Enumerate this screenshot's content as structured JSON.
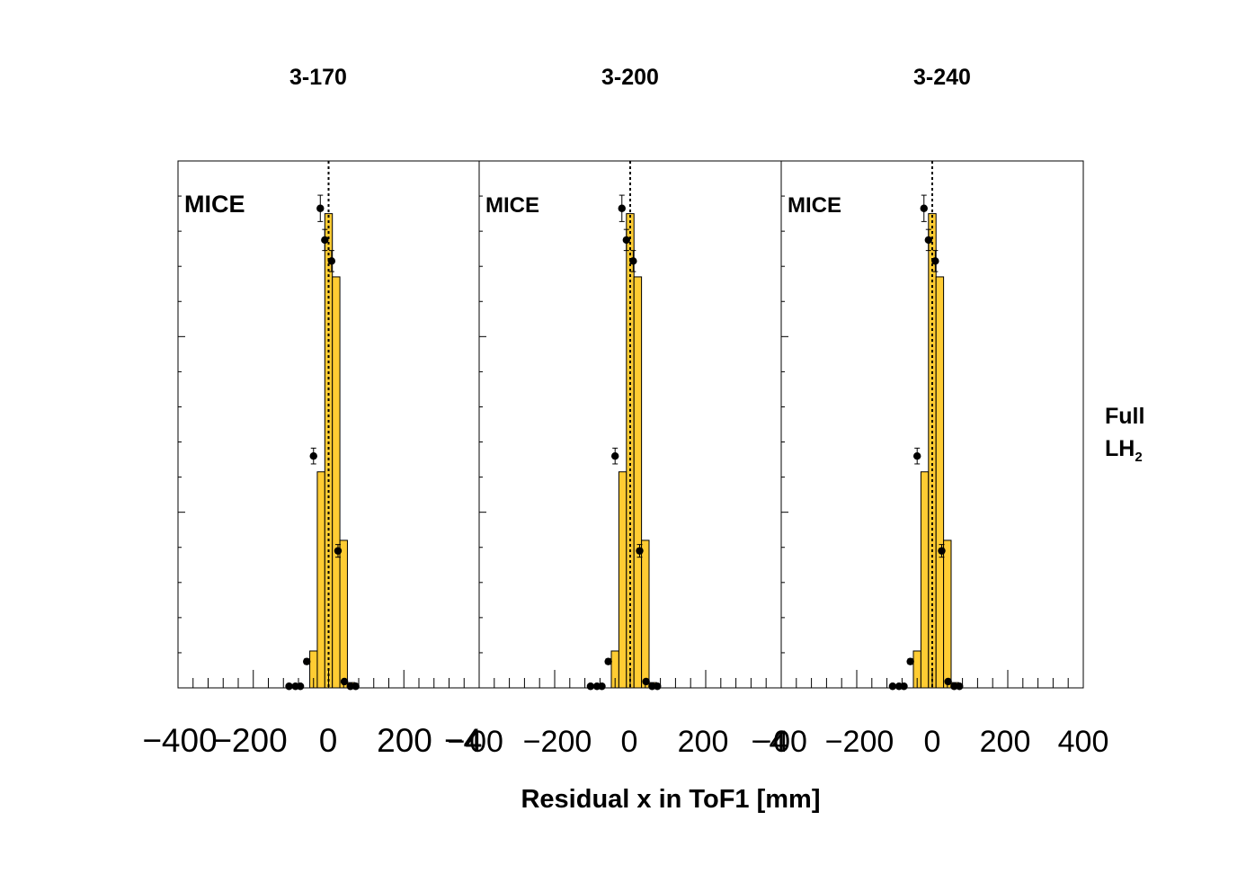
{
  "chart_data": {
    "type": "bar",
    "xlabel": "Residual x in ToF1 [mm]",
    "xlim": [
      -400,
      400
    ],
    "ylim": [
      0,
      1
    ],
    "row_label": [
      "Full",
      "LH",
      "2"
    ],
    "panels": [
      {
        "title": "3-170",
        "badge": "MICE",
        "ticks": [
          "−400",
          "−200",
          "0",
          "200",
          "−4"
        ]
      },
      {
        "title": "3-200",
        "badge": "MICE",
        "ticks": [
          "−4",
          "00",
          "−200",
          "0",
          "200",
          "−4"
        ]
      },
      {
        "title": "3-240",
        "badge": "MICE",
        "ticks": [
          "−4",
          "00",
          "−200",
          "0",
          "200",
          "400"
        ]
      }
    ],
    "histogram": {
      "bin_width": 20,
      "bins": [
        {
          "x": -40,
          "value": 0.07
        },
        {
          "x": -20,
          "value": 0.41
        },
        {
          "x": 0,
          "value": 0.9
        },
        {
          "x": 20,
          "value": 0.78
        },
        {
          "x": 40,
          "value": 0.28
        },
        {
          "x": 60,
          "value": 0.01
        }
      ]
    },
    "data_points": [
      {
        "x": -105,
        "y": 0.003,
        "err": 0
      },
      {
        "x": -88,
        "y": 0.003,
        "err": 0
      },
      {
        "x": -75,
        "y": 0.003,
        "err": 0
      },
      {
        "x": -58,
        "y": 0.05,
        "err": 0.005
      },
      {
        "x": -40,
        "y": 0.44,
        "err": 0.015
      },
      {
        "x": -22,
        "y": 0.91,
        "err": 0.025
      },
      {
        "x": -10,
        "y": 0.85,
        "err": 0.02
      },
      {
        "x": 8,
        "y": 0.81,
        "err": 0.02
      },
      {
        "x": 25,
        "y": 0.26,
        "err": 0.012
      },
      {
        "x": 42,
        "y": 0.012,
        "err": 0
      },
      {
        "x": 58,
        "y": 0.003,
        "err": 0
      },
      {
        "x": 72,
        "y": 0.003,
        "err": 0
      }
    ],
    "reference_line_x": 0,
    "colors": {
      "fill": "#ffcc33",
      "line": "#000000",
      "marker": "#000000"
    }
  }
}
